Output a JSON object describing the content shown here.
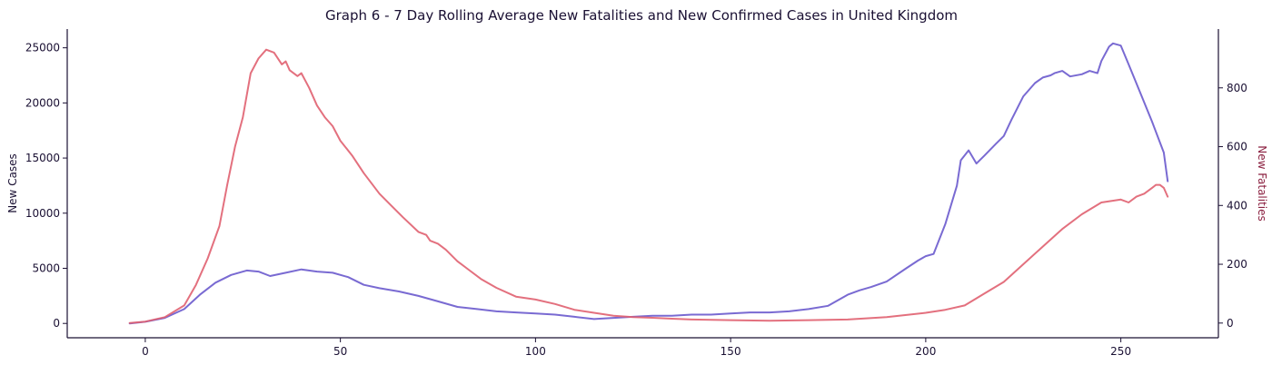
{
  "chart_data": {
    "type": "line",
    "title": "Graph 6 - 7 Day Rolling Average New Fatalities and New Confirmed Cases in United Kingdom",
    "xlabel": "",
    "ylabel": "New Cases",
    "y2label": "New Fatalities",
    "xlim": [
      -20,
      275
    ],
    "ylim": [
      -1300,
      26700
    ],
    "y2lim": [
      -50,
      1000
    ],
    "xticks": [
      0,
      50,
      100,
      150,
      200,
      250
    ],
    "yticks": [
      0,
      5000,
      10000,
      15000,
      20000,
      25000
    ],
    "y2ticks": [
      0,
      200,
      400,
      600,
      800
    ],
    "grid": false,
    "colors": {
      "cases": "#6a5acd",
      "fatalities": "#e06070",
      "axis": "#1a1033",
      "y2label": "#8b2040"
    },
    "series": [
      {
        "key": "cases",
        "axis": "left",
        "x": [
          -4,
          0,
          5,
          10,
          14,
          18,
          22,
          26,
          29,
          32,
          36,
          40,
          44,
          48,
          52,
          56,
          60,
          65,
          70,
          75,
          80,
          85,
          90,
          95,
          100,
          105,
          110,
          115,
          120,
          125,
          130,
          135,
          140,
          145,
          150,
          155,
          160,
          165,
          170,
          175,
          180,
          183,
          186,
          190,
          195,
          198,
          200,
          202,
          205,
          208,
          209,
          211,
          213,
          215,
          218,
          220,
          222,
          225,
          228,
          230,
          232,
          233,
          235,
          237,
          240,
          242,
          244,
          245,
          247,
          248,
          250,
          252,
          255,
          258,
          261,
          262
        ],
        "y": [
          0,
          150,
          500,
          1300,
          2600,
          3700,
          4400,
          4800,
          4700,
          4300,
          4600,
          4900,
          4700,
          4600,
          4200,
          3500,
          3200,
          2900,
          2500,
          2000,
          1500,
          1300,
          1100,
          1000,
          900,
          800,
          600,
          400,
          500,
          600,
          700,
          700,
          800,
          800,
          900,
          1000,
          1000,
          1100,
          1300,
          1600,
          2600,
          3000,
          3300,
          3800,
          5000,
          5700,
          6100,
          6300,
          9000,
          12500,
          14800,
          15700,
          14500,
          15200,
          16300,
          17000,
          18500,
          20600,
          21800,
          22300,
          22500,
          22700,
          22900,
          22400,
          22600,
          22900,
          22700,
          23800,
          25100,
          25400,
          25200,
          23500,
          20900,
          18300,
          15500,
          12900
        ]
      },
      {
        "key": "fatalities",
        "axis": "right",
        "x": [
          -4,
          0,
          5,
          10,
          13,
          16,
          19,
          21,
          23,
          25,
          27,
          29,
          31,
          33,
          35,
          36,
          37,
          39,
          40,
          42,
          44,
          46,
          48,
          50,
          53,
          56,
          60,
          63,
          66,
          70,
          72,
          73,
          75,
          77,
          80,
          83,
          86,
          90,
          95,
          100,
          105,
          110,
          115,
          120,
          125,
          130,
          135,
          140,
          150,
          160,
          170,
          180,
          190,
          200,
          205,
          210,
          215,
          220,
          225,
          230,
          235,
          240,
          245,
          250,
          252,
          254,
          256,
          258,
          259,
          260,
          261,
          262
        ],
        "y": [
          0,
          5,
          20,
          60,
          130,
          220,
          330,
          470,
          600,
          700,
          850,
          900,
          930,
          920,
          880,
          890,
          860,
          840,
          850,
          800,
          740,
          700,
          670,
          620,
          570,
          510,
          440,
          400,
          360,
          310,
          300,
          280,
          270,
          250,
          210,
          180,
          150,
          120,
          90,
          80,
          65,
          45,
          35,
          25,
          20,
          18,
          15,
          12,
          10,
          8,
          10,
          12,
          20,
          35,
          45,
          60,
          100,
          140,
          200,
          260,
          320,
          370,
          410,
          420,
          410,
          430,
          440,
          460,
          470,
          470,
          460,
          430
        ]
      }
    ]
  }
}
